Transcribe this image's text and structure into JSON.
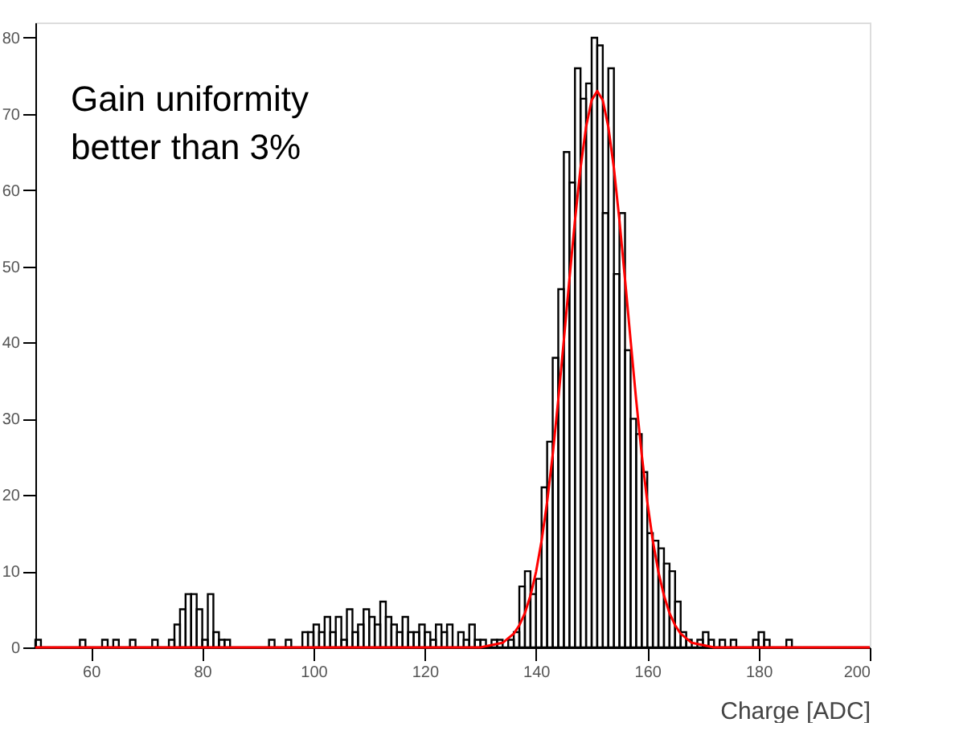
{
  "chart_data": {
    "type": "histogram",
    "xlabel": "Charge [ADC]",
    "annotations": [
      "Gain uniformity\nbetter than 3%"
    ],
    "xlim": [
      50,
      200
    ],
    "xticks": [
      60,
      80,
      100,
      120,
      140,
      160,
      180,
      200
    ],
    "ylim": [
      0,
      82
    ],
    "yticks": [
      0,
      10,
      20,
      30,
      40,
      50,
      60,
      70,
      80
    ],
    "grid": false,
    "series": [
      {
        "color": "#000000",
        "bins": [
          50,
          51,
          52,
          53,
          54,
          55,
          56,
          57,
          58,
          59,
          60,
          61,
          62,
          63,
          64,
          65,
          66,
          67,
          68,
          69,
          70,
          71,
          72,
          73,
          74,
          75,
          76,
          77,
          78,
          79,
          80,
          81,
          82,
          83,
          84,
          85,
          86,
          87,
          88,
          89,
          90,
          91,
          92,
          93,
          94,
          95,
          96,
          97,
          98,
          99,
          100,
          101,
          102,
          103,
          104,
          105,
          106,
          107,
          108,
          109,
          110,
          111,
          112,
          113,
          114,
          115,
          116,
          117,
          118,
          119,
          120,
          121,
          122,
          123,
          124,
          125,
          126,
          127,
          128,
          129,
          130,
          131,
          132,
          133,
          134,
          135,
          136,
          137,
          138,
          139,
          140,
          141,
          142,
          143,
          144,
          145,
          146,
          147,
          148,
          149,
          150,
          151,
          152,
          153,
          154,
          155,
          156,
          157,
          158,
          159,
          160,
          161,
          162,
          163,
          164,
          165,
          166,
          167,
          168,
          169,
          170,
          171,
          172,
          173,
          174,
          175,
          176,
          177,
          178,
          179,
          180,
          181,
          182,
          183,
          184,
          185,
          186,
          187,
          188,
          189,
          190,
          191,
          192,
          193,
          194,
          195,
          196,
          197,
          198,
          199,
          200
        ],
        "values": [
          1,
          0,
          0,
          0,
          0,
          0,
          0,
          0,
          1,
          0,
          0,
          0,
          1,
          0,
          1,
          0,
          0,
          1,
          0,
          0,
          0,
          1,
          0,
          0,
          1,
          3,
          5,
          7,
          7,
          5,
          1,
          7,
          2,
          1,
          1,
          0,
          0,
          0,
          0,
          0,
          0,
          0,
          1,
          0,
          0,
          1,
          0,
          0,
          2,
          2,
          3,
          2,
          4,
          2,
          4,
          1,
          5,
          2,
          3,
          5,
          4,
          3,
          6,
          4,
          3,
          2,
          4,
          2,
          2,
          3,
          2,
          1,
          3,
          2,
          3,
          0,
          2,
          1,
          3,
          1,
          1,
          0,
          1,
          1,
          0,
          1,
          2,
          8,
          10,
          7,
          9,
          21,
          27,
          38,
          47,
          65,
          61,
          76,
          72,
          74,
          80,
          79,
          57,
          76,
          49,
          57,
          39,
          30,
          28,
          23,
          15,
          14,
          13,
          11,
          10,
          6,
          2,
          1,
          0,
          1,
          2,
          1,
          0,
          1,
          0,
          1,
          0,
          0,
          0,
          1,
          2,
          1,
          0,
          0,
          0,
          1,
          0,
          0,
          0,
          0,
          0,
          0,
          0,
          0,
          0,
          0,
          0,
          0,
          0,
          0
        ]
      },
      {
        "type": "line",
        "color": "#ff0000",
        "x": [
          50,
          130,
          134,
          136,
          137,
          138,
          139,
          140,
          141,
          142,
          143,
          144,
          145,
          146,
          147,
          148,
          149,
          150,
          151,
          152,
          153,
          154,
          155,
          156,
          157,
          158,
          159,
          160,
          161,
          162,
          163,
          164,
          165,
          166,
          168,
          172,
          200
        ],
        "values": [
          0,
          0,
          0.6,
          1.8,
          2.9,
          4.5,
          6.8,
          9.9,
          14.0,
          19.1,
          25.3,
          32.5,
          40.3,
          48.3,
          56.0,
          62.9,
          68.3,
          71.8,
          73,
          71.8,
          68.3,
          62.9,
          56.0,
          48.3,
          40.3,
          32.5,
          25.3,
          19.1,
          14.0,
          9.9,
          6.8,
          4.5,
          2.9,
          1.8,
          0.6,
          0,
          0
        ]
      }
    ]
  }
}
